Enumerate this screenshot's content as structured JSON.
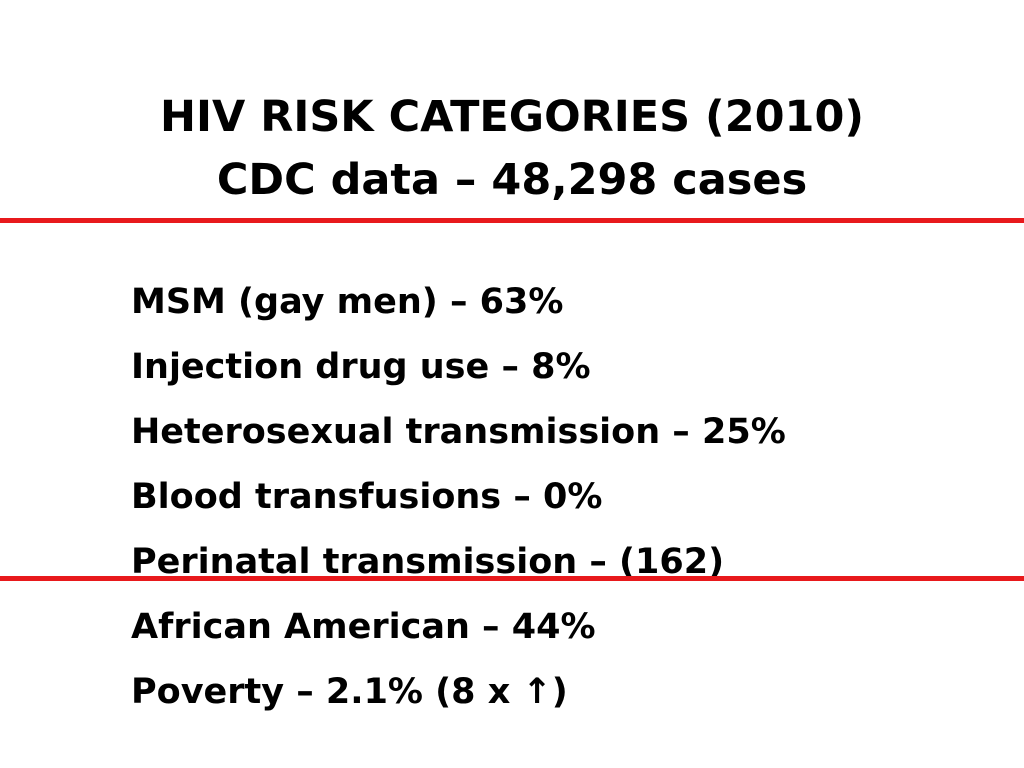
{
  "colors": {
    "background": "#ffffff",
    "text": "#000000",
    "rule": "#e8191c"
  },
  "slide": {
    "title_line_1": "HIV RISK CATEGORIES (2010)",
    "title_line_2": "CDC data – 48,298 cases",
    "items": [
      "MSM (gay men) – 63%",
      "Injection drug use – 8%",
      "Heterosexual transmission – 25%",
      "Blood transfusions – 0%",
      "Perinatal transmission – (162)",
      "African American – 44%",
      "Poverty – 2.1% (8 x ↑)"
    ]
  }
}
